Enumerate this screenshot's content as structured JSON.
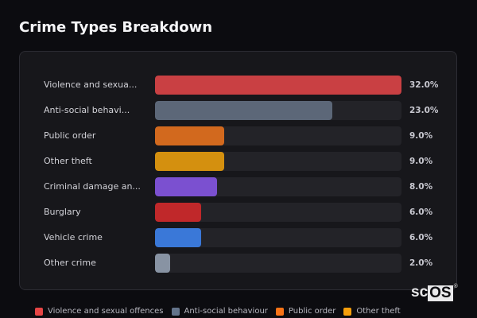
{
  "header": {
    "title": "Crime Types Breakdown"
  },
  "chart_data": {
    "type": "bar",
    "orientation": "horizontal",
    "title": "Crime Types Breakdown",
    "categories": [
      "Violence and sexual offences",
      "Anti-social behaviour",
      "Public order",
      "Other theft",
      "Criminal damage and arson",
      "Burglary",
      "Vehicle crime",
      "Other crime"
    ],
    "display_labels": [
      "Violence and sexua...",
      "Anti-social behavi...",
      "Public order",
      "Other theft",
      "Criminal damage an...",
      "Burglary",
      "Vehicle crime",
      "Other crime"
    ],
    "values": [
      32.0,
      23.0,
      9.0,
      9.0,
      8.0,
      6.0,
      6.0,
      2.0
    ],
    "value_labels": [
      "32.0%",
      "23.0%",
      "9.0%",
      "9.0%",
      "8.0%",
      "6.0%",
      "6.0%",
      "2.0%"
    ],
    "colors": [
      "#c94043",
      "#5c6778",
      "#d2691e",
      "#d4900f",
      "#7b50d0",
      "#c0282a",
      "#3a78d8",
      "#8893a3"
    ],
    "xlabel": "",
    "ylabel": "",
    "xlim": [
      0,
      32
    ],
    "grid": false,
    "legend": {
      "position": "bottom",
      "entries": [
        {
          "label": "Violence and sexual offences",
          "color": "#e64545"
        },
        {
          "label": "Anti-social behaviour",
          "color": "#64748b"
        },
        {
          "label": "Public order",
          "color": "#f97316"
        },
        {
          "label": "Other theft",
          "color": "#f59e0b"
        }
      ]
    }
  },
  "watermark": {
    "prefix": "sc",
    "boxed": "OS",
    "mark": "®"
  }
}
